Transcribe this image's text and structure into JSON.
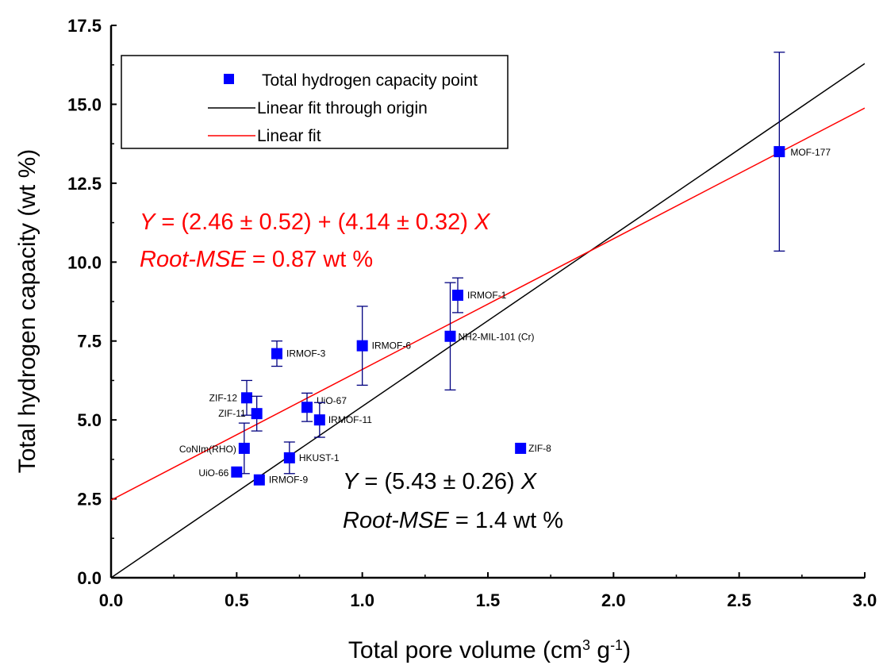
{
  "chart_data": {
    "type": "scatter",
    "xlabel_main": "Total pore volume (cm",
    "xlabel_sup1": "3",
    "xlabel_mid": " g",
    "xlabel_sup2": "-1",
    "xlabel_end": ")",
    "ylabel": "Total hydrogen capacity (wt %)",
    "xlim": [
      0,
      3.0
    ],
    "ylim": [
      0,
      17.5
    ],
    "xticks": [
      "0.0",
      "0.5",
      "1.0",
      "1.5",
      "2.0",
      "2.5",
      "3.0"
    ],
    "yticks": [
      "0.0",
      "2.5",
      "5.0",
      "7.5",
      "10.0",
      "12.5",
      "15.0",
      "17.5"
    ],
    "grid": false,
    "legend_position": "top-left",
    "legend": [
      {
        "label": "Total hydrogen capacity point",
        "kind": "marker",
        "color": "#0000ff"
      },
      {
        "label": "Linear fit through origin",
        "kind": "line",
        "color": "#000000"
      },
      {
        "label": "Linear fit",
        "kind": "line",
        "color": "#ff0000"
      }
    ],
    "points": [
      {
        "label": "MOF-177",
        "x": 2.66,
        "y": 13.5,
        "err": 3.15
      },
      {
        "label": "IRMOF-1",
        "x": 1.38,
        "y": 8.95,
        "err": 0.55
      },
      {
        "label": "NH2-MIL-101 (Cr)",
        "x": 1.35,
        "y": 7.65,
        "err": 1.7
      },
      {
        "label": "IRMOF-6",
        "x": 1.0,
        "y": 7.35,
        "err": 1.25
      },
      {
        "label": "IRMOF-3",
        "x": 0.66,
        "y": 7.1,
        "err": 0.4
      },
      {
        "label": "ZIF-12",
        "x": 0.54,
        "y": 5.7,
        "err": 0.55
      },
      {
        "label": "ZIF-11",
        "x": 0.58,
        "y": 5.2,
        "err": 0.55
      },
      {
        "label": "UiO-67",
        "x": 0.78,
        "y": 5.4,
        "err": 0.45
      },
      {
        "label": "IRMOF-11",
        "x": 0.83,
        "y": 5.0,
        "err": 0.55
      },
      {
        "label": "CoNIm(RHO)",
        "x": 0.53,
        "y": 4.1,
        "err": 0.8
      },
      {
        "label": "HKUST-1",
        "x": 0.71,
        "y": 3.8,
        "err": 0.5
      },
      {
        "label": "UiO-66",
        "x": 0.5,
        "y": 3.35,
        "err": 0.0
      },
      {
        "label": "IRMOF-9",
        "x": 0.59,
        "y": 3.1,
        "err": 0.0
      },
      {
        "label": "ZIF-8",
        "x": 1.63,
        "y": 4.1,
        "err": 0.0
      }
    ],
    "fits": [
      {
        "name": "Linear fit through origin",
        "color": "#000000",
        "intercept": 0,
        "slope": 5.43
      },
      {
        "name": "Linear fit",
        "color": "#ff0000",
        "intercept": 2.46,
        "slope": 4.14
      }
    ],
    "annotations": {
      "red_eq": {
        "y": "Y",
        "body": " = (2.46 ± 0.52) + (4.14 ± 0.32) ",
        "x": "X",
        "color": "#ff0000"
      },
      "red_rmse": {
        "name": "Root-MSE",
        "body": " = 0.87 wt %",
        "color": "#ff0000"
      },
      "black_eq": {
        "y": "Y",
        "body": " = (5.43 ± 0.26) ",
        "x": "X",
        "color": "#000000"
      },
      "black_rmse": {
        "name": "Root-MSE",
        "body": " = 1.4 wt %",
        "color": "#000000"
      }
    },
    "colors": {
      "marker": "#0000ff",
      "errorbar": "#000080"
    }
  }
}
